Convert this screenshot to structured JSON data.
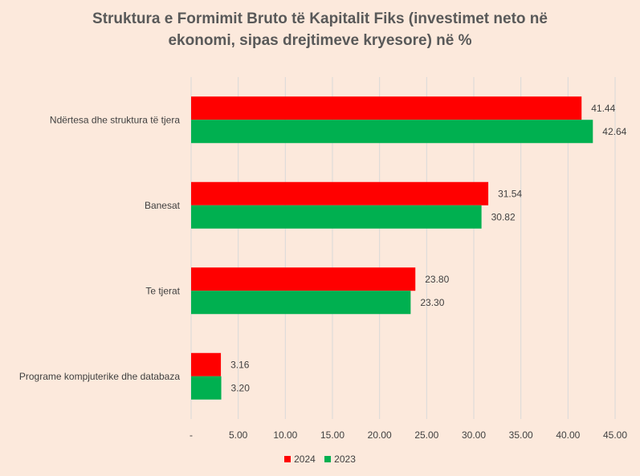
{
  "colors": {
    "series_2024": "#FF0000",
    "series_2023": "#00B050",
    "grid": "#D9D9D9",
    "text": "#404040"
  },
  "chart_data": {
    "type": "bar",
    "orientation": "horizontal",
    "title_line1": "Struktura e Formimit Bruto të Kapitalit Fiks (investimet neto në",
    "title_line2": "ekonomi, sipas drejtimeve kryesore) në %",
    "categories": [
      "Ndërtesa dhe struktura të tjera",
      "Banesat",
      "Te tjerat",
      "Programe kompjuterike dhe databaza"
    ],
    "series": [
      {
        "name": "2024",
        "color": "#FF0000",
        "values": [
          41.44,
          31.54,
          23.8,
          3.16
        ],
        "labels": [
          "41.44",
          "31.54",
          "23.80",
          "3.16"
        ]
      },
      {
        "name": "2023",
        "color": "#00B050",
        "values": [
          42.64,
          30.82,
          23.3,
          3.2
        ],
        "labels": [
          "42.64",
          "30.82",
          "23.30",
          "3.20"
        ]
      }
    ],
    "xlim": [
      0,
      45
    ],
    "xticks": [
      0,
      5,
      10,
      15,
      20,
      25,
      30,
      35,
      40,
      45
    ],
    "xtick_labels": [
      "-",
      "5.00",
      "10.00",
      "15.00",
      "20.00",
      "25.00",
      "30.00",
      "35.00",
      "40.00",
      "45.00"
    ],
    "grid": true,
    "legend_position": "bottom"
  }
}
